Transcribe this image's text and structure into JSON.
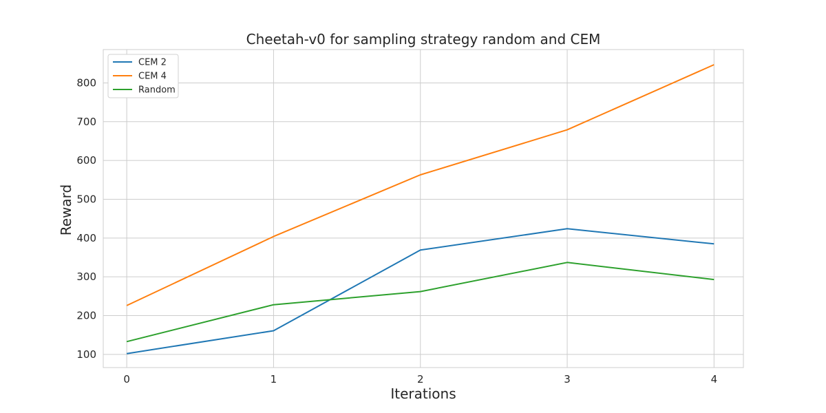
{
  "chart_data": {
    "type": "line",
    "title": "Cheetah-v0 for sampling strategy random and CEM",
    "xlabel": "Iterations",
    "ylabel": "Reward",
    "x": [
      0,
      1,
      2,
      3,
      4
    ],
    "x_ticks": [
      "0",
      "1",
      "2",
      "3",
      "4"
    ],
    "y_ticks": [
      "100",
      "200",
      "300",
      "400",
      "500",
      "600",
      "700",
      "800"
    ],
    "xlim": [
      -0.16,
      4.2
    ],
    "ylim": [
      66,
      886
    ],
    "grid": true,
    "legend_position": "top-left",
    "series": [
      {
        "name": "CEM 2",
        "color": "#1f77b4",
        "values": [
          102,
          161,
          369,
          424,
          385
        ]
      },
      {
        "name": "CEM 4",
        "color": "#ff7f0e",
        "values": [
          226,
          404,
          563,
          679,
          847
        ]
      },
      {
        "name": "Random",
        "color": "#2ca02c",
        "values": [
          133,
          228,
          262,
          337,
          293
        ]
      }
    ]
  }
}
